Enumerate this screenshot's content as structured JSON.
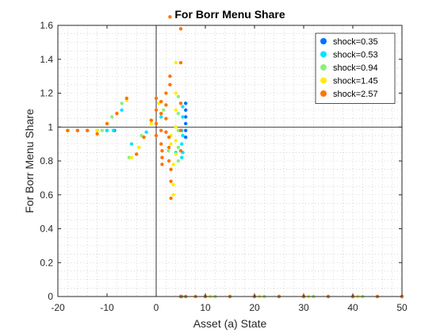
{
  "chart_data": {
    "type": "scatter",
    "title": "For Borr Menu Share",
    "xlabel": "Asset (a) State",
    "ylabel": "For Borr Menu Share",
    "xlim": [
      -20,
      50
    ],
    "ylim": [
      0,
      1.6
    ],
    "xticks": [
      "-20",
      "-10",
      "0",
      "10",
      "20",
      "30",
      "40",
      "50"
    ],
    "yticks": [
      "0",
      "0.2",
      "0.4",
      "0.6",
      "0.8",
      "1",
      "1.2",
      "1.4",
      "1.6"
    ],
    "grid": "minor-dotted",
    "legend_position": "top-right",
    "reference_lines": {
      "x": 0,
      "y": 1
    },
    "series": [
      {
        "name": "shock=0.35",
        "color": "#0072ff",
        "points": [
          [
            -18,
            0.98
          ],
          [
            -16,
            0.98
          ],
          [
            -14,
            0.98
          ],
          [
            -12,
            0.98
          ],
          [
            -10,
            0.98
          ],
          [
            -8.5,
            0.98
          ],
          [
            5,
            0.0
          ],
          [
            6,
            1.14
          ],
          [
            6,
            1.1
          ],
          [
            6,
            1.06
          ],
          [
            6,
            1.02
          ],
          [
            6,
            0.98
          ],
          [
            6,
            0.94
          ],
          [
            10,
            0.0
          ],
          [
            20,
            0.0
          ],
          [
            30,
            0.0
          ],
          [
            40,
            0.0
          ],
          [
            50,
            0.0
          ]
        ]
      },
      {
        "name": "shock=0.53",
        "color": "#00e5ff",
        "points": [
          [
            -18,
            0.98
          ],
          [
            -16,
            0.98
          ],
          [
            -14,
            0.98
          ],
          [
            -12,
            0.98
          ],
          [
            -10,
            0.98
          ],
          [
            -8.7,
            0.98
          ],
          [
            -7,
            1.1
          ],
          [
            -5,
            0.9
          ],
          [
            -2,
            0.97
          ],
          [
            1,
            1.06
          ],
          [
            4,
            0.85
          ],
          [
            5.2,
            0.0
          ],
          [
            5.2,
            0.98
          ],
          [
            5.2,
            0.9
          ],
          [
            5.2,
            0.82
          ],
          [
            5.4,
            1.12
          ],
          [
            5.4,
            1.06
          ],
          [
            5.4,
            0.95
          ],
          [
            5.4,
            0.85
          ],
          [
            15,
            0.0
          ],
          [
            25,
            0.0
          ],
          [
            35,
            0.0
          ],
          [
            45,
            0.0
          ]
        ]
      },
      {
        "name": "shock=0.94",
        "color": "#8cf07a",
        "points": [
          [
            -18,
            0.98
          ],
          [
            -14,
            0.98
          ],
          [
            -11,
            0.98
          ],
          [
            -9,
            1.06
          ],
          [
            -7,
            1.14
          ],
          [
            -5.5,
            0.82
          ],
          [
            -3,
            0.95
          ],
          [
            1.5,
            1.1
          ],
          [
            2.5,
            0.86
          ],
          [
            4.5,
            1.18
          ],
          [
            4.5,
            1.08
          ],
          [
            4.5,
            0.98
          ],
          [
            4.5,
            0.88
          ],
          [
            4.5,
            0.8
          ],
          [
            12,
            0.0
          ],
          [
            22,
            0.0
          ],
          [
            32,
            0.0
          ],
          [
            42,
            0.0
          ]
        ]
      },
      {
        "name": "shock=1.45",
        "color": "#ffee00",
        "points": [
          [
            -18,
            0.98
          ],
          [
            -14,
            0.98
          ],
          [
            -12,
            0.98
          ],
          [
            -10,
            1.02
          ],
          [
            -8,
            1.08
          ],
          [
            -6,
            1.16
          ],
          [
            -5,
            0.82
          ],
          [
            -3.5,
            0.88
          ],
          [
            -1,
            1.02
          ],
          [
            0.5,
            1.14
          ],
          [
            3,
            0.95
          ],
          [
            3,
            0.9
          ],
          [
            3.5,
            0.78
          ],
          [
            3.5,
            0.66
          ],
          [
            3.5,
            0.6
          ],
          [
            4,
            1.38
          ],
          [
            4,
            1.2
          ],
          [
            4,
            1.1
          ],
          [
            4,
            1.0
          ],
          [
            4,
            0.92
          ],
          [
            4,
            0.84
          ],
          [
            11,
            0.0
          ],
          [
            21,
            0.0
          ],
          [
            31,
            0.0
          ],
          [
            41,
            0.0
          ]
        ]
      },
      {
        "name": "shock=2.57",
        "color": "#ff7400",
        "points": [
          [
            -18,
            0.98
          ],
          [
            -16,
            0.98
          ],
          [
            -14,
            0.98
          ],
          [
            -12,
            0.96
          ],
          [
            -10,
            1.02
          ],
          [
            -8,
            1.08
          ],
          [
            -6,
            1.17
          ],
          [
            -4,
            0.84
          ],
          [
            -2.5,
            0.94
          ],
          [
            -1,
            1.04
          ],
          [
            0,
            1.17
          ],
          [
            0,
            1.1
          ],
          [
            0,
            1.02
          ],
          [
            0,
            0.95
          ],
          [
            1,
            1.15
          ],
          [
            1,
            1.08
          ],
          [
            1,
            0.98
          ],
          [
            1,
            0.9
          ],
          [
            1.2,
            0.86
          ],
          [
            1.2,
            0.82
          ],
          [
            1.2,
            0.78
          ],
          [
            2,
            1.2
          ],
          [
            2,
            1.13
          ],
          [
            2,
            1.05
          ],
          [
            2,
            0.97
          ],
          [
            2.6,
            0.94
          ],
          [
            2.6,
            0.88
          ],
          [
            2.6,
            0.8
          ],
          [
            2.8,
            1.65
          ],
          [
            2.8,
            1.3
          ],
          [
            2.8,
            1.25
          ],
          [
            3,
            0.75
          ],
          [
            3,
            0.68
          ],
          [
            3,
            0.58
          ],
          [
            5,
            1.58
          ],
          [
            5,
            1.38
          ],
          [
            5,
            1.14
          ],
          [
            5,
            0.98
          ],
          [
            5,
            0.86
          ],
          [
            5,
            0.0
          ],
          [
            6,
            0.0
          ],
          [
            8,
            0.0
          ],
          [
            10,
            0.0
          ],
          [
            15,
            0.0
          ],
          [
            20,
            0.0
          ],
          [
            25,
            0.0
          ],
          [
            30,
            0.0
          ],
          [
            35,
            0.0
          ],
          [
            40,
            0.0
          ],
          [
            45,
            0.0
          ],
          [
            50,
            0.0
          ]
        ]
      }
    ]
  }
}
